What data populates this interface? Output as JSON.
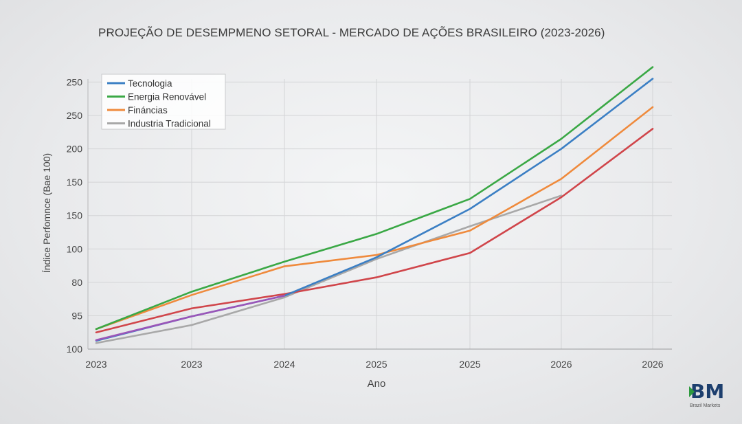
{
  "brand": {
    "logo_text": "BM",
    "logo_subtitle": "Brazil Markets",
    "logo_color": "#1d3f6e",
    "logo_accent": "#2e9a3f"
  },
  "chart_data": {
    "type": "line",
    "title": "PROJEÇÃO DE DESEMPMENO SETORAL - MERCADO DE AÇÕES BRASILEIRO (2023-2026)",
    "xlabel": "Ano",
    "ylabel": "Índice Perfomnce (Bae 100)",
    "x_tick_labels": [
      "2023",
      "2023",
      "2024",
      "2025",
      "2025",
      "2026",
      "2026"
    ],
    "y_tick_labels": [
      "100",
      "95",
      "80",
      "100",
      "150",
      "150",
      "200",
      "250",
      "250"
    ],
    "y_tick_values": [
      0,
      1,
      2,
      3,
      4,
      5,
      6,
      7,
      8
    ],
    "ylim": [
      0,
      8.4
    ],
    "grid": true,
    "legend_position": "top-left",
    "series": [
      {
        "name": "Tecnologia",
        "color": "#3b7fc4",
        "x": [
          0,
          1,
          2,
          3,
          4,
          5,
          6
        ],
        "values": [
          0.25,
          0.98,
          1.6,
          2.75,
          4.2,
          6.0,
          8.1
        ]
      },
      {
        "name": "Energia Renovável",
        "color": "#3aa845",
        "x": [
          0,
          1,
          2,
          3,
          4,
          5,
          6
        ],
        "values": [
          0.6,
          1.72,
          2.62,
          3.45,
          4.5,
          6.3,
          8.45
        ]
      },
      {
        "name": "Fináncias",
        "color": "#ef8a3c",
        "x": [
          0,
          1,
          2,
          3,
          4,
          5,
          6
        ],
        "values": [
          0.6,
          1.62,
          2.48,
          2.82,
          3.55,
          5.1,
          7.25
        ]
      },
      {
        "name": "Industria Tradicional",
        "color": "#a8a8a8",
        "x": [
          0,
          1,
          2,
          3,
          4,
          5
        ],
        "values": [
          0.18,
          0.72,
          1.55,
          2.7,
          3.68,
          4.6
        ]
      }
    ],
    "unlabeled_series": [
      {
        "color": "#d0454a",
        "x": [
          0,
          1,
          2,
          3,
          4,
          5,
          6
        ],
        "values": [
          0.5,
          1.22,
          1.65,
          2.15,
          2.88,
          4.55,
          6.6
        ]
      },
      {
        "color": "#9b55b8",
        "x": [
          0,
          1,
          2
        ],
        "values": [
          0.27,
          0.98,
          1.6
        ]
      }
    ]
  }
}
